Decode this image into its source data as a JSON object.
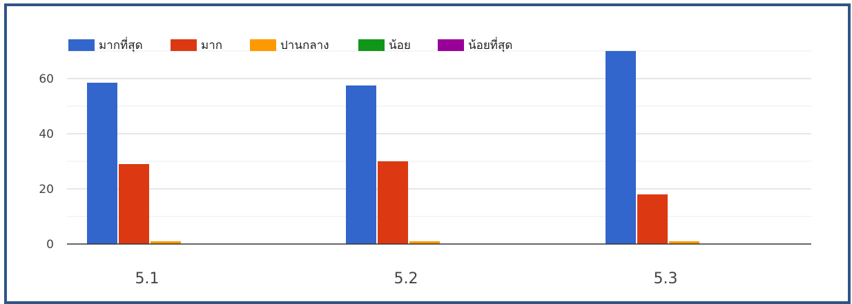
{
  "chart_data": {
    "type": "bar",
    "categories": [
      "5.1",
      "5.2",
      "5.3"
    ],
    "series": [
      {
        "name": "มากที่สุด",
        "color": "#3366cc",
        "values": [
          58.5,
          57.5,
          70
        ]
      },
      {
        "name": "มาก",
        "color": "#dc3912",
        "values": [
          29,
          30,
          18
        ]
      },
      {
        "name": "ปานกลาง",
        "color": "#ff9900",
        "values": [
          1,
          1,
          1
        ]
      },
      {
        "name": "น้อย",
        "color": "#109618",
        "values": [
          0,
          0,
          0
        ]
      },
      {
        "name": "น้อยที่สุด",
        "color": "#990099",
        "values": [
          0,
          0,
          0
        ]
      }
    ],
    "yticks": [
      0,
      20,
      40,
      60
    ],
    "ylim": [
      0,
      70
    ],
    "grid": true,
    "legend_position": "top-left",
    "title": "",
    "xlabel": "",
    "ylabel": ""
  }
}
